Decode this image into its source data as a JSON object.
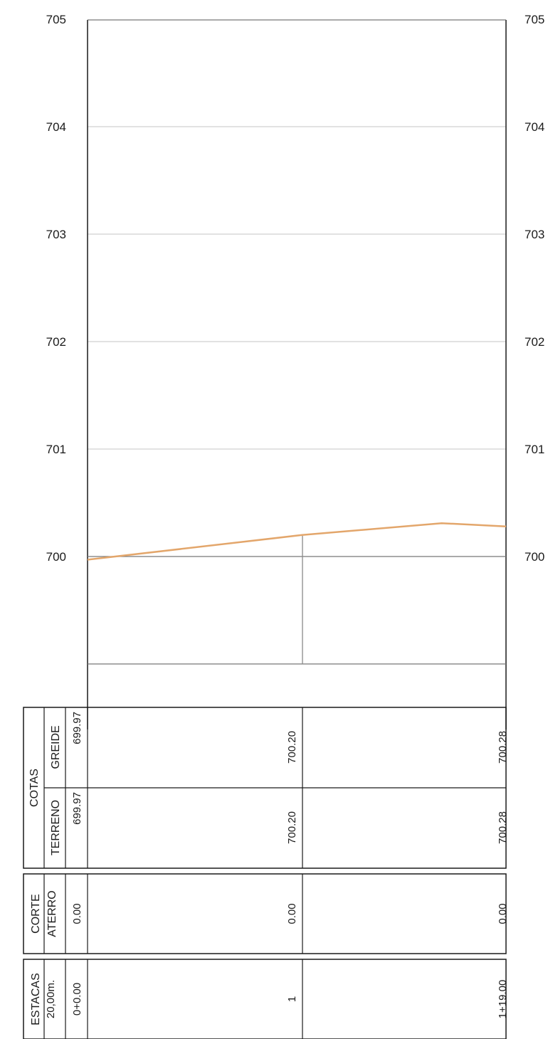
{
  "chart_data": {
    "type": "line",
    "y_ticks": [
      700,
      701,
      702,
      703,
      704,
      705
    ],
    "y_ticks_right": [
      "700",
      "701",
      "702",
      "703",
      "704",
      "705"
    ],
    "series": [
      {
        "points": [
          [
            0,
            699.97
          ],
          [
            20,
            700.2
          ],
          [
            33,
            700.31
          ],
          [
            39,
            700.28
          ]
        ],
        "color": "#e3a66b"
      }
    ],
    "grid": true
  },
  "table": {
    "cotas": {
      "title": "COTAS",
      "greide_label": "GREIDE",
      "terreno_label": "TERRENO",
      "greide": [
        "699.97",
        "700.20",
        "700.28"
      ],
      "terreno": [
        "699.97",
        "700.20",
        "700.28"
      ]
    },
    "corte": {
      "title": "CORTE",
      "aterro_label": "ATERRO",
      "aterro": [
        "0.00",
        "0.00",
        "0.00"
      ]
    },
    "estacas": {
      "title": "ESTACAS",
      "interval": "20,00m.",
      "values": [
        "0+0.00",
        "1",
        "1+19.00"
      ]
    }
  },
  "colors": {
    "grade_line": "#e3a66b",
    "grid": "#d9d9d9",
    "frame": "#1a1a1a"
  }
}
